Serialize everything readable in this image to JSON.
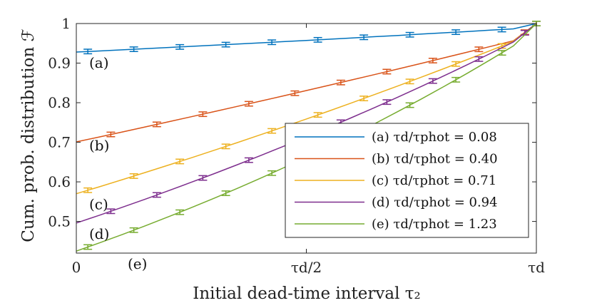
{
  "chart_data": {
    "type": "line",
    "xlabel": "Initial dead-time interval τ₂",
    "ylabel": "Cum. prob. distribution ℱ",
    "xlim": [
      0,
      1
    ],
    "ylim": [
      0.42,
      1.0
    ],
    "x_ticks": [
      {
        "value": 0,
        "label": "0"
      },
      {
        "value": 0.5,
        "label": "τd/2"
      },
      {
        "value": 1,
        "label": "τd"
      }
    ],
    "y_ticks": [
      {
        "value": 0.5,
        "label": "0.5"
      },
      {
        "value": 0.6,
        "label": "0.6"
      },
      {
        "value": 0.7,
        "label": "0.7"
      },
      {
        "value": 0.8,
        "label": "0.8"
      },
      {
        "value": 0.9,
        "label": "0.9"
      },
      {
        "value": 1.0,
        "label": "1"
      }
    ],
    "grid": false,
    "error_bars": true,
    "legend_position": "right",
    "x": [
      0,
      0.05,
      0.1,
      0.15,
      0.2,
      0.25,
      0.3,
      0.35,
      0.4,
      0.45,
      0.5,
      0.55,
      0.6,
      0.65,
      0.7,
      0.75,
      0.8,
      0.85,
      0.9,
      0.95,
      1.0
    ],
    "markers_x": [
      0,
      0.1,
      0.2,
      0.3,
      0.4,
      0.5,
      0.6,
      0.7,
      0.8,
      0.9
    ],
    "series": [
      {
        "name": "(a) τd/τphot = 0.08",
        "tag": "(a)",
        "color": "#0072BD",
        "values": [
          0.928,
          0.9307,
          0.9336,
          0.9365,
          0.9394,
          0.9423,
          0.9452,
          0.9482,
          0.9512,
          0.9542,
          0.9572,
          0.9604,
          0.9636,
          0.9668,
          0.97,
          0.9733,
          0.9766,
          0.9799,
          0.9832,
          0.9865,
          1.0
        ]
      },
      {
        "name": "(b) τd/τphot = 0.40",
        "tag": "(b)",
        "color": "#D95319",
        "values": [
          0.701,
          0.7135,
          0.7261,
          0.7388,
          0.7516,
          0.7645,
          0.7775,
          0.7907,
          0.8039,
          0.8172,
          0.8306,
          0.8442,
          0.8578,
          0.8716,
          0.8854,
          0.8994,
          0.9135,
          0.9277,
          0.942,
          0.9564,
          1.0
        ]
      },
      {
        "name": "(c) τd/τphot = 0.71",
        "tag": "(c)",
        "color": "#EDB120",
        "values": [
          0.57,
          0.5876,
          0.6055,
          0.6237,
          0.6422,
          0.6609,
          0.6799,
          0.6992,
          0.7188,
          0.7387,
          0.7589,
          0.7794,
          0.8002,
          0.8213,
          0.8427,
          0.8645,
          0.8866,
          0.909,
          0.9318,
          0.9549,
          1.0
        ]
      },
      {
        "name": "(d) τd/τphot = 0.94",
        "tag": "(d)",
        "color": "#7E2F8E",
        "values": [
          0.496,
          0.5157,
          0.5358,
          0.5564,
          0.5775,
          0.599,
          0.6209,
          0.6434,
          0.6663,
          0.6897,
          0.7137,
          0.7381,
          0.7631,
          0.7886,
          0.8146,
          0.8412,
          0.8684,
          0.8961,
          0.9244,
          0.9533,
          1.0
        ]
      },
      {
        "name": "(e) τd/τphot = 1.23",
        "tag": "(e)",
        "color": "#77AC30",
        "values": [
          0.425,
          0.4457,
          0.467,
          0.489,
          0.5116,
          0.5349,
          0.5589,
          0.5836,
          0.609,
          0.6352,
          0.6622,
          0.6899,
          0.7185,
          0.7479,
          0.7782,
          0.8094,
          0.8415,
          0.8745,
          0.9085,
          0.9435,
          1.0
        ]
      }
    ]
  }
}
